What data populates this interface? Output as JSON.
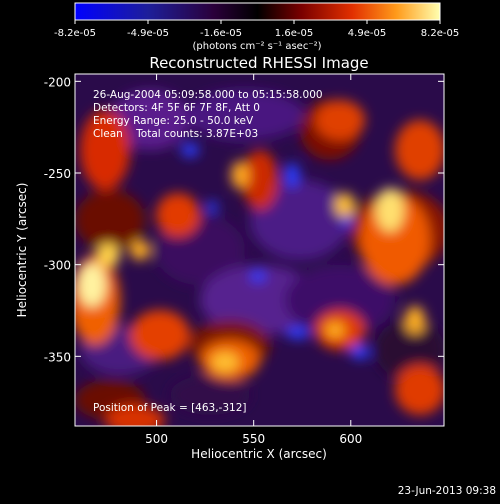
{
  "colorbar": {
    "ticks": [
      "-8.2e-05",
      "-4.9e-05",
      "-1.6e-05",
      "1.6e-05",
      "4.9e-05",
      "8.2e-05"
    ],
    "units_label": "(photons cm⁻² s⁻¹ asec⁻²)",
    "range": [
      -8.2e-05,
      8.2e-05
    ]
  },
  "title": "Reconstructed RHESSI Image",
  "annotations": {
    "time_range": "26-Aug-2004 05:09:58.000 to 05:15:58.000",
    "detectors": "Detectors: 4F 5F 6F 7F 8F, Att 0",
    "energy_range": "Energy Range: 25.0 - 50.0 keV",
    "algorithm": "Clean    Total counts: 3.87E+03",
    "peak_position": "Position of Peak = [463,-312]"
  },
  "axes": {
    "x": {
      "label": "Heliocentric X (arcsec)",
      "ticks": [
        500,
        550,
        600
      ],
      "range": [
        458,
        648
      ]
    },
    "y": {
      "label": "Heliocentric Y (arcsec)",
      "ticks": [
        -200,
        -250,
        -300,
        -350
      ],
      "range": [
        -388,
        -196
      ]
    }
  },
  "footer": {
    "timestamp": "23-Jun-2013 09:38"
  },
  "colors": {
    "background": "#000000",
    "text": "#ffffff"
  }
}
